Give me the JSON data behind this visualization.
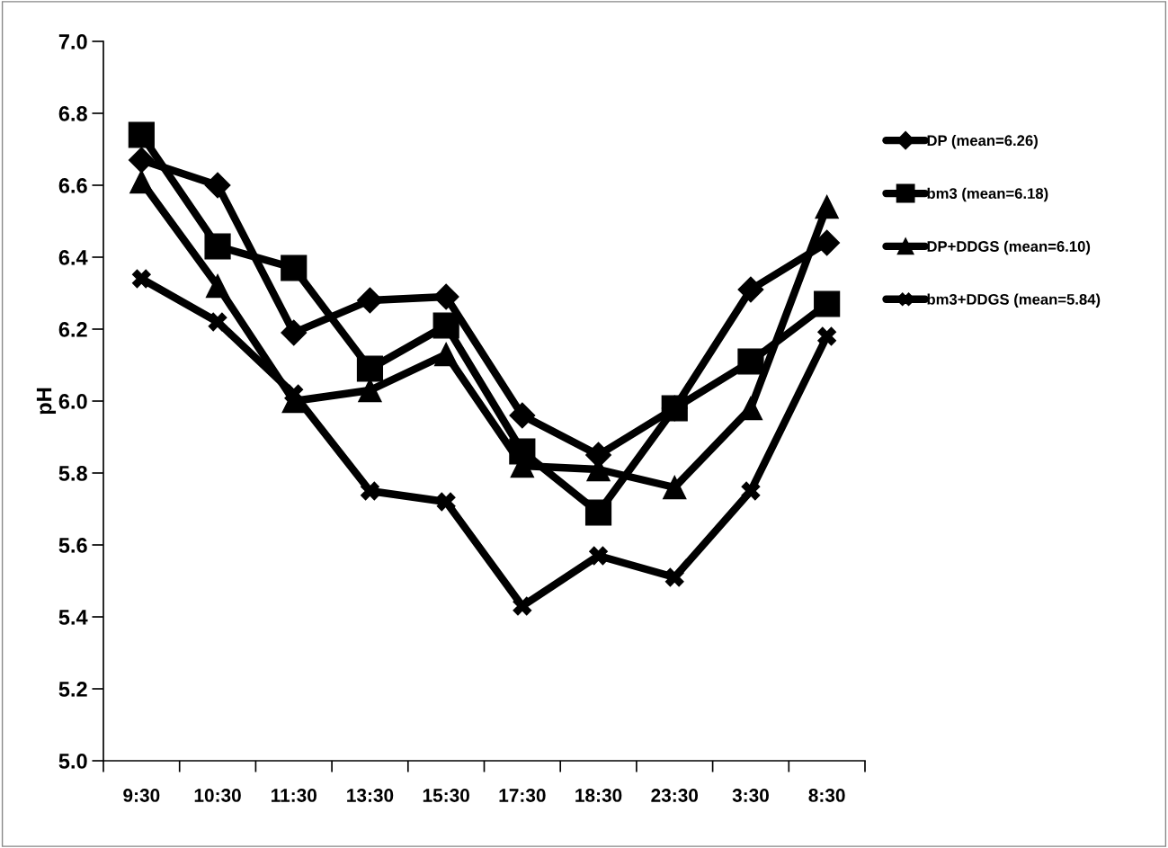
{
  "chart_data": {
    "type": "line",
    "ylabel": "pH",
    "categories": [
      "9:30",
      "10:30",
      "11:30",
      "13:30",
      "15:30",
      "17:30",
      "18:30",
      "23:30",
      "3:30",
      "8:30"
    ],
    "series": [
      {
        "name": "DP (mean=6.26)",
        "color": "#000000",
        "marker": "diamond",
        "values": [
          6.67,
          6.6,
          6.19,
          6.28,
          6.29,
          5.96,
          5.85,
          5.98,
          6.31,
          6.44
        ]
      },
      {
        "name": "bm3 (mean=6.18)",
        "color": "#000000",
        "marker": "square",
        "values": [
          6.74,
          6.43,
          6.37,
          6.09,
          6.21,
          5.86,
          5.69,
          5.98,
          6.11,
          6.27
        ]
      },
      {
        "name": "DP+DDGS (mean=6.10)",
        "color": "#000000",
        "marker": "triangle",
        "values": [
          6.61,
          6.32,
          6.0,
          6.03,
          6.13,
          5.82,
          5.81,
          5.76,
          5.98,
          6.54
        ]
      },
      {
        "name": "bm3+DDGS (mean=5.84)",
        "color": "#000000",
        "marker": "cross",
        "values": [
          6.34,
          6.22,
          6.02,
          5.75,
          5.72,
          5.43,
          5.57,
          5.51,
          5.75,
          6.18
        ]
      }
    ],
    "ylim": [
      5.0,
      7.0
    ],
    "yticks": [
      {
        "value": 5.0,
        "label": "5.0"
      },
      {
        "value": 5.2,
        "label": "5.2"
      },
      {
        "value": 5.4,
        "label": "5.4"
      },
      {
        "value": 5.6,
        "label": "5.6"
      },
      {
        "value": 5.8,
        "label": "5.8"
      },
      {
        "value": 6.0,
        "label": "6.0"
      },
      {
        "value": 6.2,
        "label": "6.2"
      },
      {
        "value": 6.4,
        "label": "6.4"
      },
      {
        "value": 6.6,
        "label": "6.6"
      },
      {
        "value": 6.8,
        "label": "6.8"
      },
      {
        "value": 7.0,
        "label": "7.0"
      }
    ],
    "grid": false,
    "legend": "right",
    "line_style": "solid"
  }
}
